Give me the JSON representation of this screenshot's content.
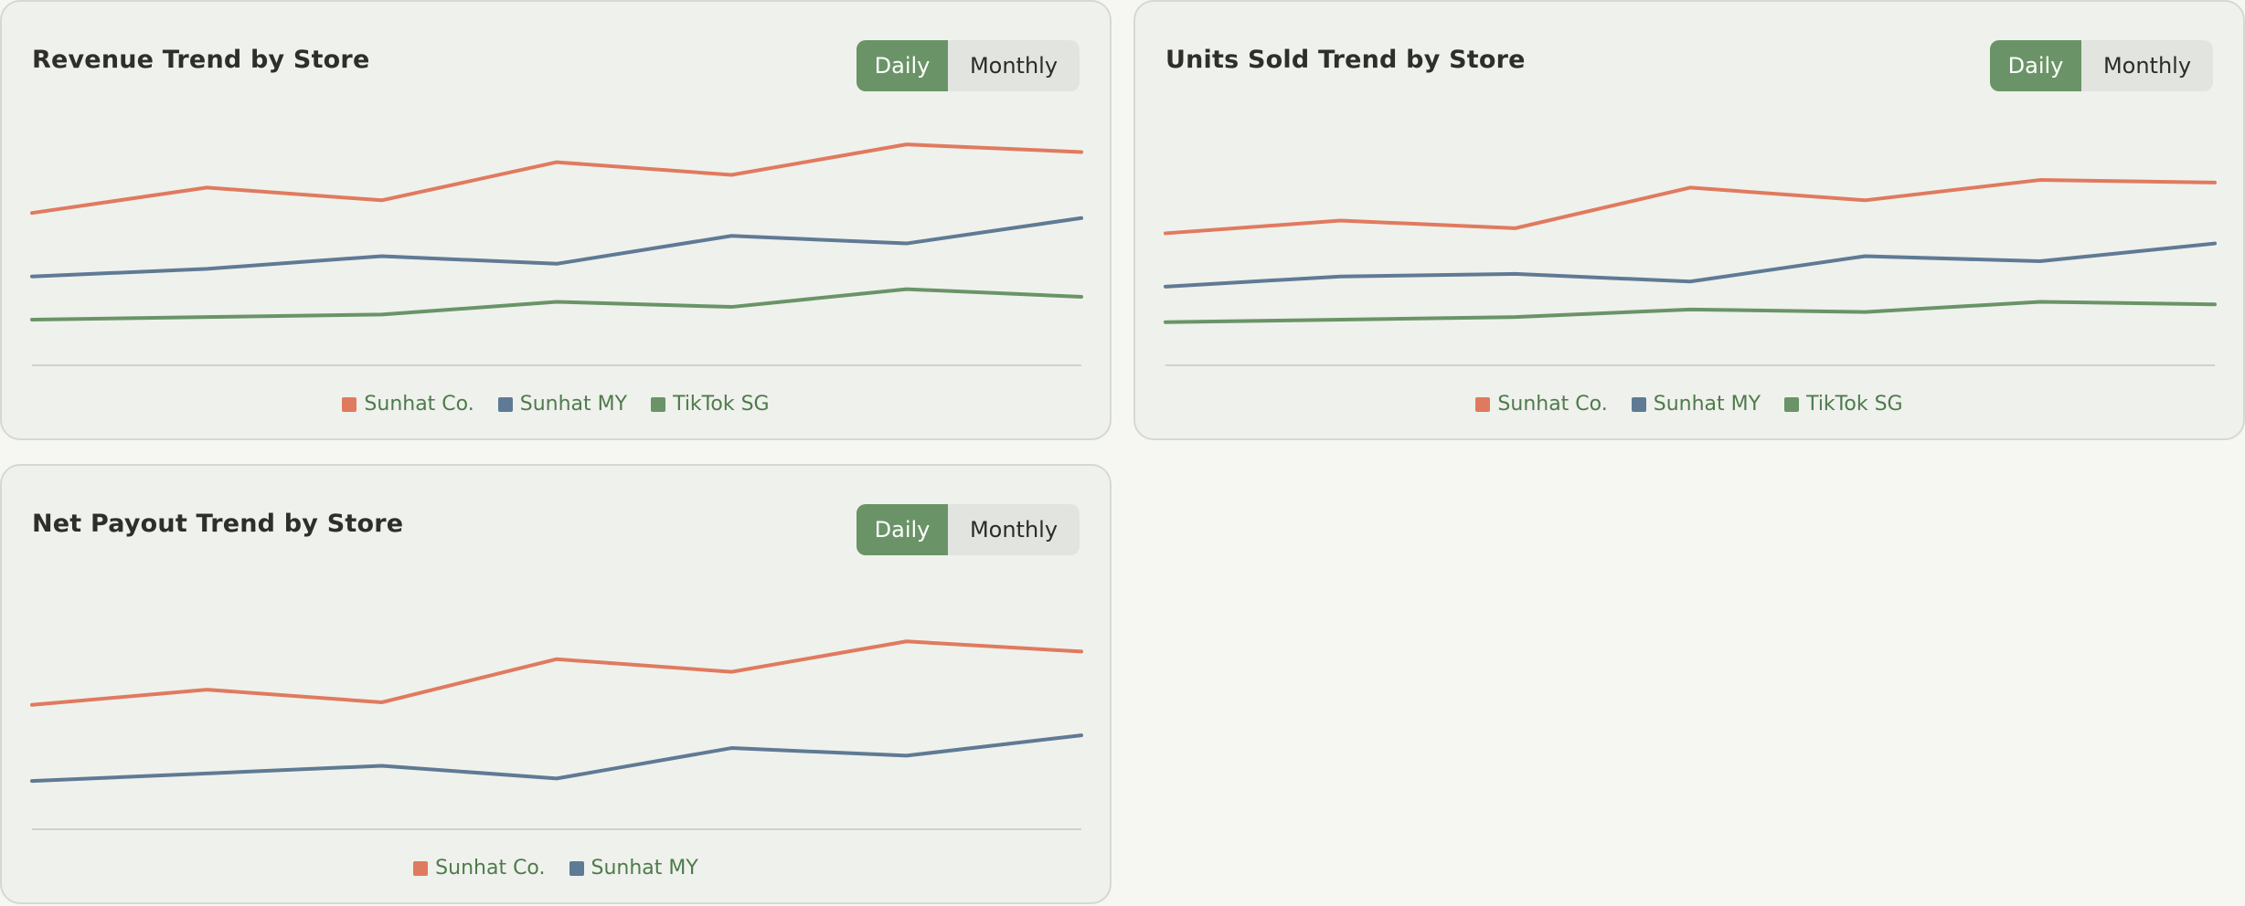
{
  "colors": {
    "sunhat_co": "#e07a5f",
    "sunhat_my": "#5f7a94",
    "tiktok_sg": "#6a9467",
    "axis": "#cfd2cb"
  },
  "toggle": {
    "daily": "Daily",
    "monthly": "Monthly",
    "active": "daily"
  },
  "chart_data": [
    {
      "id": "revenue",
      "type": "line",
      "title": "Revenue Trend by Store",
      "x": [
        1,
        2,
        3,
        4,
        5,
        6,
        7
      ],
      "ylim": [
        0,
        100
      ],
      "legend_position": "bottom-center",
      "series": [
        {
          "name": "Sunhat Co.",
          "color": "#e07a5f",
          "values": [
            60,
            70,
            65,
            80,
            75,
            87,
            84
          ]
        },
        {
          "name": "Sunhat MY",
          "color": "#5f7a94",
          "values": [
            35,
            38,
            43,
            40,
            51,
            48,
            58
          ]
        },
        {
          "name": "TikTok SG",
          "color": "#6a9467",
          "values": [
            18,
            19,
            20,
            25,
            23,
            30,
            27
          ]
        }
      ]
    },
    {
      "id": "units",
      "type": "line",
      "title": "Units Sold Trend by Store",
      "x": [
        1,
        2,
        3,
        4,
        5,
        6,
        7
      ],
      "ylim": [
        0,
        100
      ],
      "legend_position": "bottom-center",
      "series": [
        {
          "name": "Sunhat Co.",
          "color": "#e07a5f",
          "values": [
            52,
            57,
            54,
            70,
            65,
            73,
            72
          ]
        },
        {
          "name": "Sunhat MY",
          "color": "#5f7a94",
          "values": [
            31,
            35,
            36,
            33,
            43,
            41,
            48
          ]
        },
        {
          "name": "TikTok SG",
          "color": "#6a9467",
          "values": [
            17,
            18,
            19,
            22,
            21,
            25,
            24
          ]
        }
      ]
    },
    {
      "id": "payout",
      "type": "line",
      "title": "Net Payout Trend by Store",
      "x": [
        1,
        2,
        3,
        4,
        5,
        6,
        7
      ],
      "ylim": [
        0,
        100
      ],
      "legend_position": "bottom-center",
      "series": [
        {
          "name": "Sunhat Co.",
          "color": "#e07a5f",
          "values": [
            49,
            55,
            50,
            67,
            62,
            74,
            70
          ]
        },
        {
          "name": "Sunhat MY",
          "color": "#5f7a94",
          "values": [
            19,
            22,
            25,
            20,
            32,
            29,
            37
          ]
        }
      ]
    }
  ]
}
